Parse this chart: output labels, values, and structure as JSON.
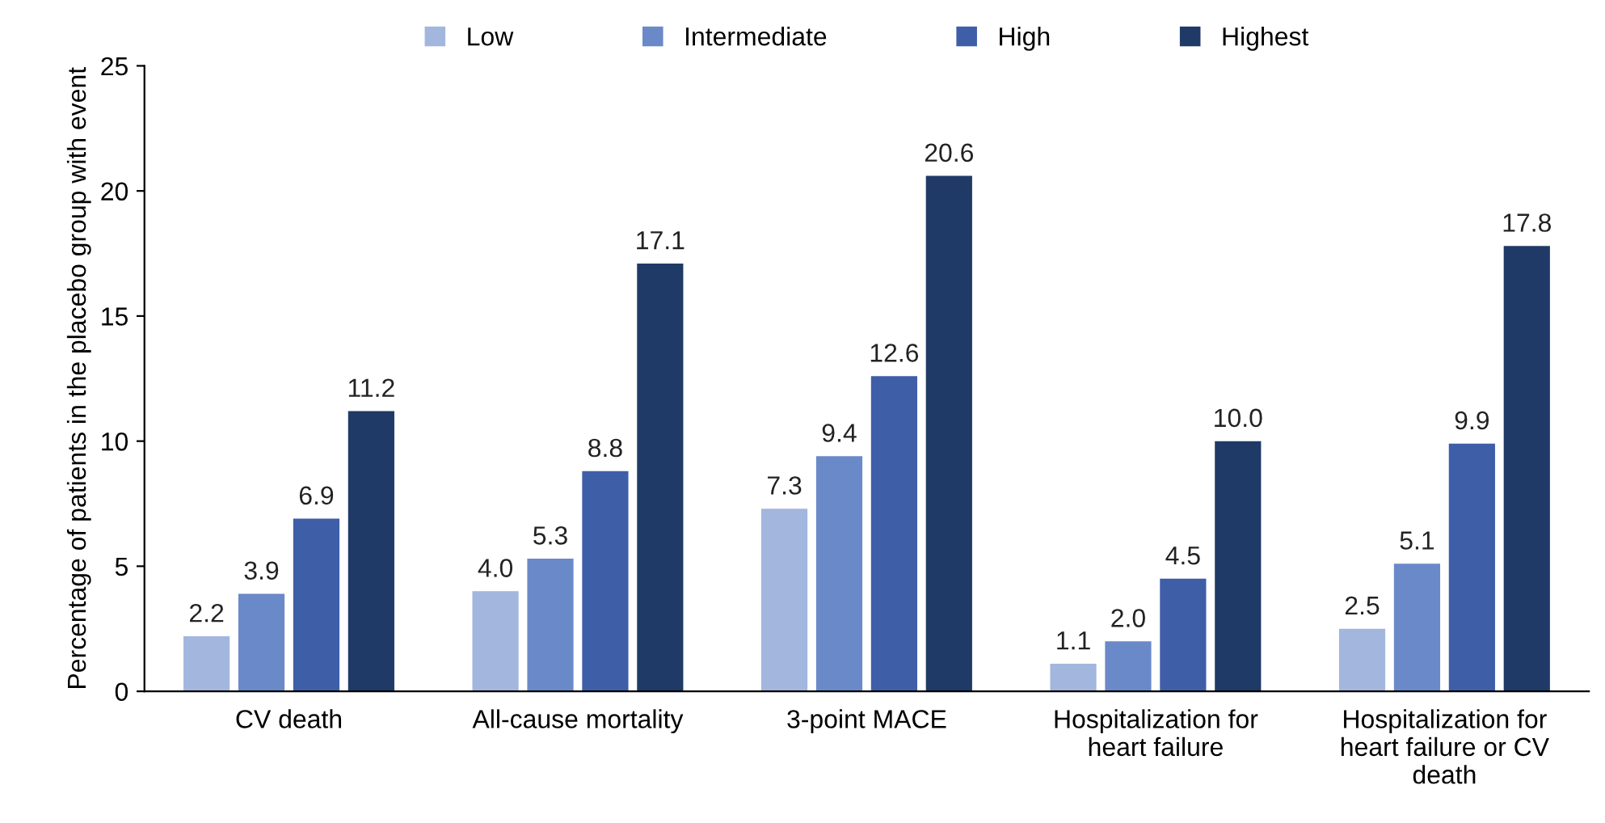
{
  "chart_data": {
    "type": "bar",
    "ylabel": "Percentage of patients in the placebo group with event",
    "categories": [
      "CV death",
      "All-cause mortality",
      "3-point MACE",
      "Hospitalization for\nheart failure",
      "Hospitalization for\nheart failure or CV\ndeath"
    ],
    "series": [
      {
        "name": "Low",
        "color": "#a3b6dd",
        "values": [
          2.2,
          4.0,
          7.3,
          1.1,
          2.5
        ],
        "value_labels": [
          "2.2",
          "4.0",
          "7.3",
          "1.1",
          "2.5"
        ]
      },
      {
        "name": "Intermediate",
        "color": "#6a89c8",
        "values": [
          3.9,
          5.3,
          9.4,
          2.0,
          5.1
        ],
        "value_labels": [
          "3.9",
          "5.3",
          "9.4",
          "2.0",
          "5.1"
        ]
      },
      {
        "name": "High",
        "color": "#3e5ea8",
        "values": [
          6.9,
          8.8,
          12.6,
          4.5,
          9.9
        ],
        "value_labels": [
          "6.9",
          "8.8",
          "12.6",
          "4.5",
          "9.9"
        ]
      },
      {
        "name": "Highest",
        "color": "#1f3a66",
        "values": [
          11.2,
          17.1,
          20.6,
          10.0,
          17.8
        ],
        "value_labels": [
          "11.2",
          "17.1",
          "20.6",
          "10.0",
          "17.8"
        ]
      }
    ],
    "ylim": [
      0,
      25
    ],
    "yticks": [
      0,
      5,
      10,
      15,
      20,
      25
    ],
    "grid": false,
    "legend": "top"
  }
}
